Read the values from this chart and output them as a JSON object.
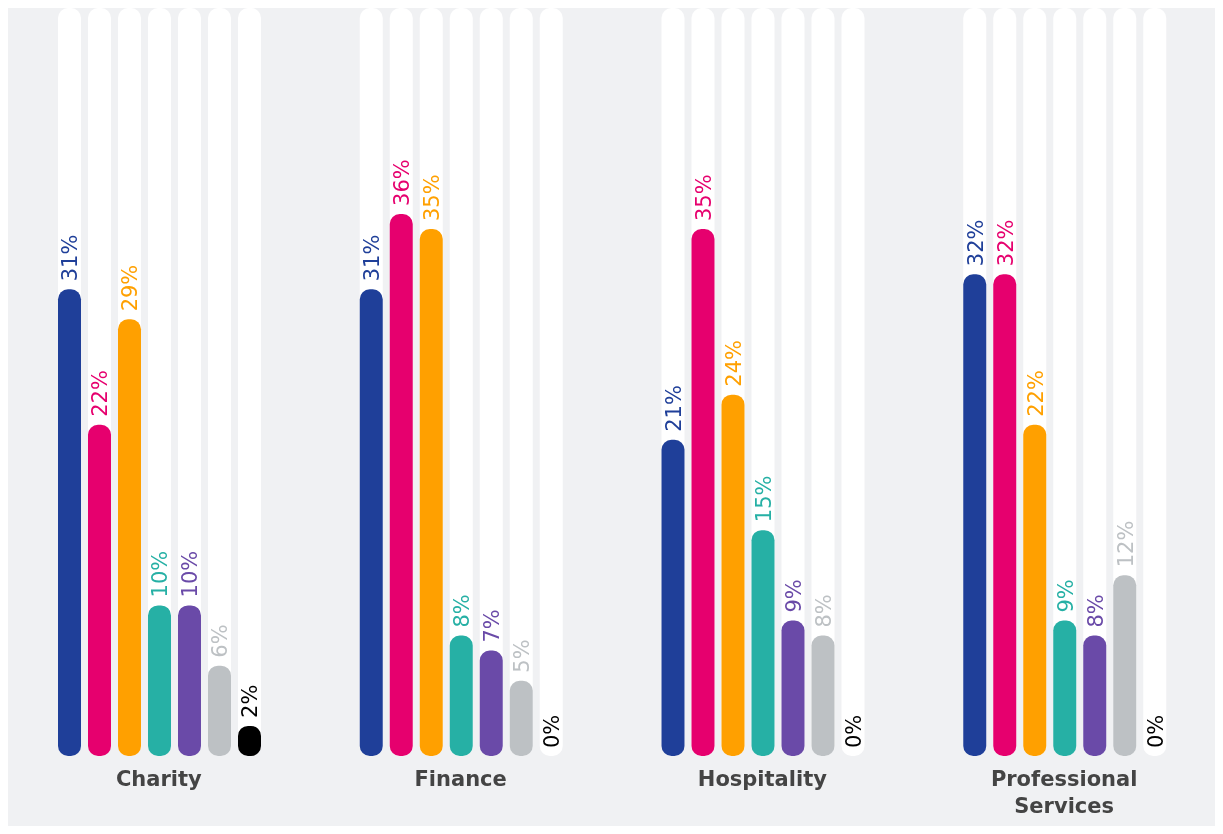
{
  "chart_data": {
    "type": "bar",
    "categories": [
      "Charity",
      "Finance",
      "Hospitality",
      "Professional Services"
    ],
    "series": [
      {
        "color": "#1f3f99",
        "values": [
          31,
          31,
          21,
          32
        ],
        "value_labels": [
          "31%",
          "31%",
          "21%",
          "32%"
        ]
      },
      {
        "color": "#e6006e",
        "values": [
          22,
          36,
          35,
          32
        ],
        "value_labels": [
          "22%",
          "36%",
          "35%",
          "32%"
        ]
      },
      {
        "color": "#ffa000",
        "values": [
          29,
          35,
          24,
          22
        ],
        "value_labels": [
          "29%",
          "35%",
          "24%",
          "22%"
        ]
      },
      {
        "color": "#26b0a5",
        "values": [
          10,
          8,
          15,
          9
        ],
        "value_labels": [
          "10%",
          "8%",
          "15%",
          "9%"
        ]
      },
      {
        "color": "#6a4aa8",
        "values": [
          10,
          7,
          9,
          8
        ],
        "value_labels": [
          "10%",
          "7%",
          "9%",
          "8%"
        ]
      },
      {
        "color": "#bdc1c4",
        "values": [
          6,
          5,
          8,
          12
        ],
        "value_labels": [
          "6%",
          "5%",
          "8%",
          "12%"
        ]
      },
      {
        "color": "#000000",
        "values": [
          2,
          0,
          0,
          0
        ],
        "value_labels": [
          "2%",
          "0%",
          "0%",
          "0%"
        ]
      }
    ],
    "grid": false,
    "legend": false
  }
}
